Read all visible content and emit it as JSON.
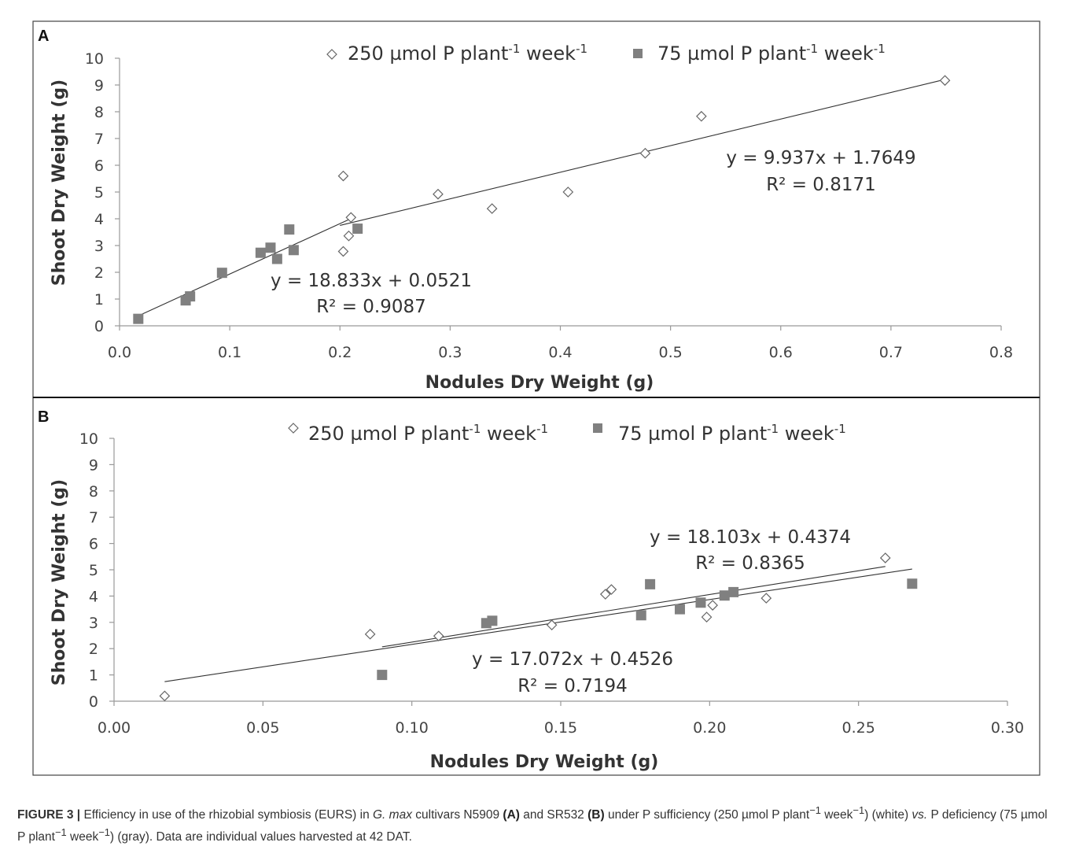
{
  "panels": [
    {
      "letter": "A",
      "xlabel": "Nodules Dry Weight (g)",
      "ylabel": "Shoot Dry Weight (g)",
      "xticks": [
        "0.0",
        "0.1",
        "0.2",
        "0.3",
        "0.4",
        "0.5",
        "0.6",
        "0.7",
        "0.8"
      ],
      "yticks": [
        "0",
        "1",
        "2",
        "3",
        "4",
        "5",
        "6",
        "7",
        "8",
        "9",
        "10"
      ],
      "legend": [
        {
          "marker": "open-diamond",
          "text": "250 µmol P plant",
          "sup1": "-1",
          "mid": " week",
          "sup2": "-1"
        },
        {
          "marker": "gray-square",
          "text": "75 µmol P plant",
          "sup1": "-1",
          "mid": " week",
          "sup2": "-1"
        }
      ],
      "equations": [
        {
          "eq": "y = 9.937x + 1.7649",
          "r2": "R² = 0.8171"
        },
        {
          "eq": "y = 18.833x + 0.0521",
          "r2": "R² = 0.9087"
        }
      ]
    },
    {
      "letter": "B",
      "xlabel": "Nodules Dry Weight (g)",
      "ylabel": "Shoot Dry Weight (g)",
      "xticks": [
        "0.00",
        "0.05",
        "0.10",
        "0.15",
        "0.20",
        "0.25",
        "0.30"
      ],
      "yticks": [
        "0",
        "1",
        "2",
        "3",
        "4",
        "5",
        "6",
        "7",
        "8",
        "9",
        "10"
      ],
      "legend": [
        {
          "marker": "open-diamond",
          "text": "250 µmol P plant",
          "sup1": "-1",
          "mid": " week",
          "sup2": "-1"
        },
        {
          "marker": "gray-square",
          "text": "75 µmol P plant",
          "sup1": "-1",
          "mid": " week",
          "sup2": "-1"
        }
      ],
      "equations": [
        {
          "eq": "y = 18.103x + 0.4374",
          "r2": "R² = 0.8365"
        },
        {
          "eq": "y = 17.072x + 0.4526",
          "r2": "R² = 0.7194"
        }
      ]
    }
  ],
  "caption": {
    "label": "FIGURE 3 |",
    "t1": " Efficiency in use of the rhizobial symbiosis (EURS) in ",
    "species": "G. max",
    "t2": " cultivars N5909 ",
    "a": "(A)",
    "t3": " and SR532 ",
    "b": "(B)",
    "t4": " under P sufficiency (250 µmol P plant",
    "sup1": "−1",
    "t5": " week",
    "sup2": "−1",
    "t6": ") (white) ",
    "vs": "vs.",
    "t7": " P deficiency (75 µmol P plant",
    "sup3": "−1",
    "t8": " week",
    "sup4": "−1",
    "t9": ") (gray). Data are individual values harvested at 42 DAT."
  },
  "colors": {
    "open_marker_stroke": "#666666",
    "square_fill": "#808080",
    "trend_line": "#333333",
    "axis": "#999999"
  },
  "chart_data": [
    {
      "type": "scatter",
      "title": "A",
      "xlabel": "Nodules Dry Weight (g)",
      "ylabel": "Shoot Dry Weight (g)",
      "xlim": [
        0.0,
        0.8
      ],
      "ylim": [
        0,
        10
      ],
      "grid": false,
      "legend_position": "top",
      "series": [
        {
          "name": "250 µmol P plant-1 week-1",
          "marker": "open-diamond",
          "points": [
            [
              0.203,
              5.6
            ],
            [
              0.203,
              2.78
            ],
            [
              0.208,
              3.36
            ],
            [
              0.21,
              4.05
            ],
            [
              0.289,
              4.92
            ],
            [
              0.338,
              4.38
            ],
            [
              0.407,
              5.0
            ],
            [
              0.477,
              6.45
            ],
            [
              0.528,
              7.83
            ],
            [
              0.749,
              9.17
            ]
          ],
          "trendline": {
            "slope": 9.937,
            "intercept": 1.7649,
            "x_range": [
              0.2,
              0.749
            ]
          }
        },
        {
          "name": "75 µmol P plant-1 week-1",
          "marker": "gray-square",
          "points": [
            [
              0.017,
              0.26
            ],
            [
              0.06,
              0.95
            ],
            [
              0.064,
              1.1
            ],
            [
              0.093,
              1.98
            ],
            [
              0.128,
              2.73
            ],
            [
              0.137,
              2.92
            ],
            [
              0.143,
              2.5
            ],
            [
              0.154,
              3.6
            ],
            [
              0.158,
              2.83
            ],
            [
              0.216,
              3.63
            ]
          ],
          "trendline": {
            "slope": 18.833,
            "intercept": 0.0521,
            "x_range": [
              0.017,
              0.21
            ]
          }
        }
      ]
    },
    {
      "type": "scatter",
      "title": "B",
      "xlabel": "Nodules Dry Weight (g)",
      "ylabel": "Shoot Dry Weight (g)",
      "xlim": [
        0.0,
        0.3
      ],
      "ylim": [
        0,
        10
      ],
      "grid": false,
      "legend_position": "top",
      "series": [
        {
          "name": "250 µmol P plant-1 week-1",
          "marker": "open-diamond",
          "points": [
            [
              0.017,
              0.2
            ],
            [
              0.086,
              2.55
            ],
            [
              0.109,
              2.48
            ],
            [
              0.147,
              2.9
            ],
            [
              0.165,
              4.07
            ],
            [
              0.167,
              4.25
            ],
            [
              0.199,
              3.2
            ],
            [
              0.201,
              3.65
            ],
            [
              0.219,
              3.92
            ],
            [
              0.259,
              5.45
            ]
          ],
          "trendline": {
            "slope": 18.103,
            "intercept": 0.4374,
            "x_range": [
              0.09,
              0.259
            ]
          }
        },
        {
          "name": "75 µmol P plant-1 week-1",
          "marker": "gray-square",
          "points": [
            [
              0.09,
              1.0
            ],
            [
              0.125,
              2.97
            ],
            [
              0.127,
              3.06
            ],
            [
              0.177,
              3.27
            ],
            [
              0.18,
              4.45
            ],
            [
              0.19,
              3.5
            ],
            [
              0.197,
              3.75
            ],
            [
              0.205,
              4.02
            ],
            [
              0.208,
              4.15
            ],
            [
              0.268,
              4.47
            ]
          ],
          "trendline": {
            "slope": 17.072,
            "intercept": 0.4526,
            "x_range": [
              0.017,
              0.268
            ]
          }
        }
      ]
    }
  ]
}
